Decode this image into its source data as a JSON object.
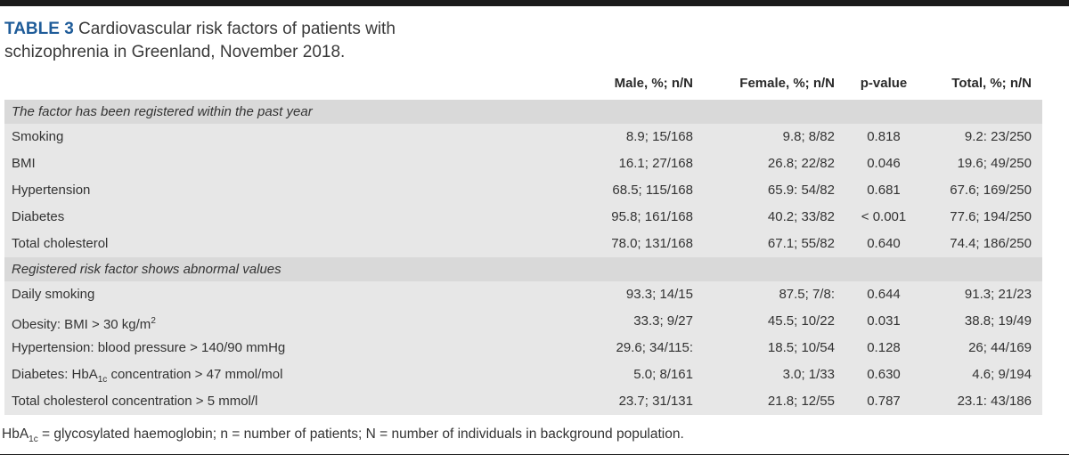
{
  "title": {
    "label": "TABLE 3",
    "text": "Cardiovascular risk factors of patients with schizophrenia in Greenland, November 2018."
  },
  "columns": {
    "male": "Male, %; n/N",
    "female": "Female, %; n/N",
    "pvalue": "p-value",
    "total": "Total, %; n/N"
  },
  "table": {
    "sections": [
      {
        "header": "The factor has been registered within the past year",
        "rows": [
          {
            "factor": "Smoking",
            "male": "8.9; 15/168",
            "female": "9.8; 8/82",
            "pvalue": "0.818",
            "total": "9.2: 23/250"
          },
          {
            "factor": "BMI",
            "male": "16.1; 27/168",
            "female": "26.8; 22/82",
            "pvalue": "0.046",
            "total": "19.6; 49/250"
          },
          {
            "factor": "Hypertension",
            "male": "68.5; 115/168",
            "female": "65.9: 54/82",
            "pvalue": "0.681",
            "total": "67.6; 169/250"
          },
          {
            "factor": "Diabetes",
            "male": "95.8; 161/168",
            "female": "40.2; 33/82",
            "pvalue": "< 0.001",
            "total": "77.6; 194/250"
          },
          {
            "factor": "Total cholesterol",
            "male": "78.0; 131/168",
            "female": "67.1; 55/82",
            "pvalue": "0.640",
            "total": "74.4; 186/250"
          }
        ]
      },
      {
        "header": "Registered risk factor shows abnormal values",
        "rows": [
          {
            "factor": "Daily smoking",
            "male": "93.3; 14/15",
            "female": "87.5; 7/8:",
            "pvalue": "0.644",
            "total": "91.3; 21/23"
          },
          {
            "factor": "Obesity: BMI > 30 kg/m",
            "factor_sup": "2",
            "male": "33.3; 9/27",
            "female": "45.5; 10/22",
            "pvalue": "0.031",
            "total": "38.8; 19/49"
          },
          {
            "factor": "Hypertension: blood pressure > 140/90 mmHg",
            "male": "29.6; 34/115:",
            "female": "18.5; 10/54",
            "pvalue": "0.128",
            "total": "26; 44/169"
          },
          {
            "factor_pre": "Diabetes: HbA",
            "factor_sub": "1c",
            "factor_post": " concentration > 47 mmol/mol",
            "male": "5.0; 8/161",
            "female": "3.0; 1/33",
            "pvalue": "0.630",
            "total": "4.6; 9/194"
          },
          {
            "factor": "Total cholesterol concentration > 5 mmol/l",
            "male": "23.7; 31/131",
            "female": "21.8; 12/55",
            "pvalue": "0.787",
            "total": "23.1: 43/186"
          }
        ]
      }
    ]
  },
  "footnote": {
    "prefix": "HbA",
    "sub": "1c",
    "rest": " = glycosylated haemoglobin; n = number of patients; N = number of individuals in background population."
  },
  "colors": {
    "accent_blue": "#1f5c99",
    "section_header_bg": "#d9d9d9",
    "table_body_bg": "#e7e7e7",
    "bar_black": "#1b1b1b",
    "text": "#333333"
  }
}
